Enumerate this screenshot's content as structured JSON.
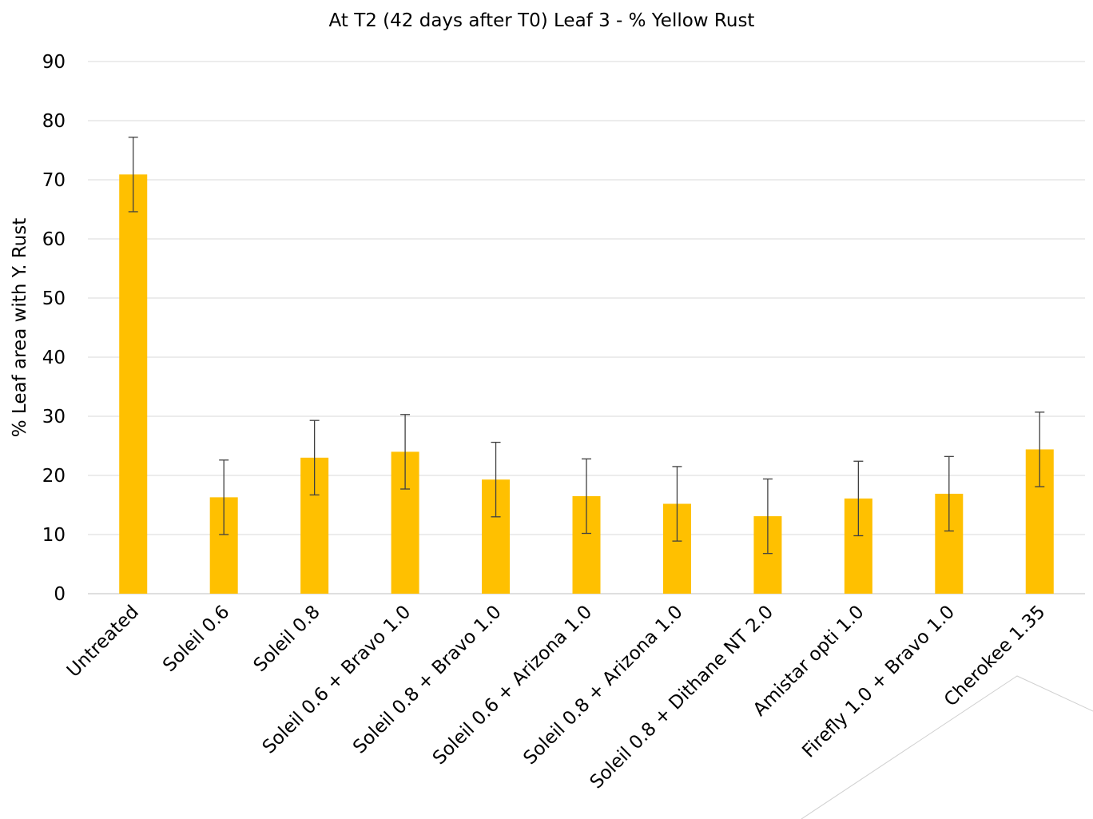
{
  "chart_data": {
    "type": "bar",
    "title": "At T2 (42 days after T0) Leaf 3 - % Yellow Rust",
    "xlabel": "",
    "ylabel": "% Leaf area with Y. Rust",
    "ylim": [
      0,
      90
    ],
    "yticks": [
      0,
      10,
      20,
      30,
      40,
      50,
      60,
      70,
      80,
      90
    ],
    "grid": true,
    "legend": "none",
    "colors": {
      "bar": "#FFC000",
      "error_bar": "#404040",
      "grid": "#d9d9d9",
      "corner_line": "#d0d0d0"
    },
    "categories": [
      "Untreated",
      "Soleil 0.6",
      "Soleil 0.8",
      "Soleil 0.6 + Bravo 1.0",
      "Soleil 0.8 + Bravo 1.0",
      "Soleil 0.6 + Arizona 1.0",
      "Soleil 0.8 + Arizona 1.0",
      "Soleil 0.8 + Dithane NT 2.0",
      "Amistar opti 1.0",
      "Firefly 1.0 + Bravo 1.0",
      "Cherokee 1.35"
    ],
    "values": [
      70.9,
      16.3,
      23.0,
      24.0,
      19.3,
      16.5,
      15.2,
      13.1,
      16.1,
      16.9,
      24.4
    ],
    "error": [
      6.3,
      6.3,
      6.3,
      6.3,
      6.3,
      6.3,
      6.3,
      6.3,
      6.3,
      6.3,
      6.3
    ]
  }
}
